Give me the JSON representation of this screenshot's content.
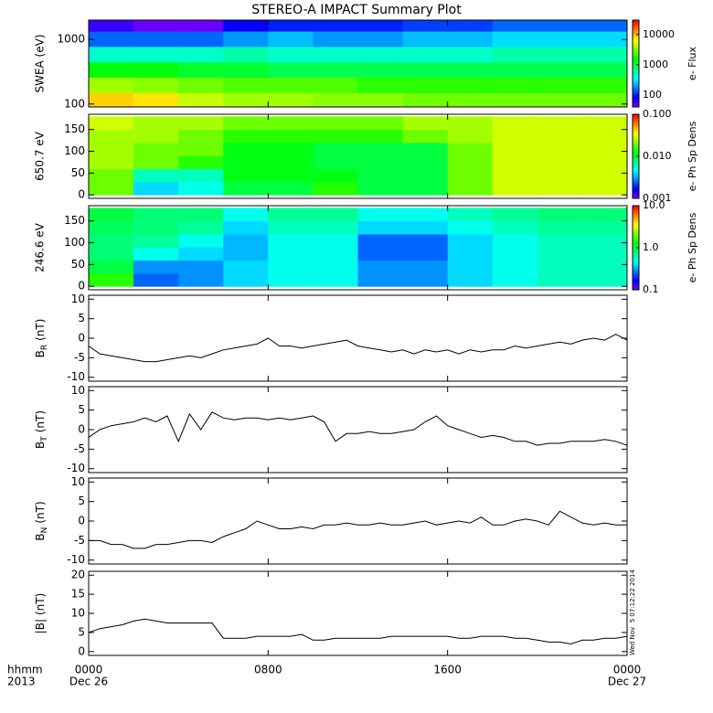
{
  "title": "STEREO-A IMPACT Summary Plot",
  "timestamp": "Wed Nov  5 07:12:22 2014",
  "x_axis": {
    "xlim": [
      0,
      24
    ],
    "xticks": [
      {
        "value": 0,
        "label": "0000"
      },
      {
        "value": 8,
        "label": "0800"
      },
      {
        "value": 16,
        "label": "1600"
      },
      {
        "value": 24,
        "label": "0000"
      }
    ],
    "dates": [
      {
        "value": 0,
        "label": "Dec 26"
      },
      {
        "value": 24,
        "label": "Dec 27"
      }
    ],
    "time_label": "hhmm",
    "year_label": "2013"
  },
  "chart_data": [
    {
      "type": "heatmap",
      "ylabel": "SWEA (eV)",
      "log_y": true,
      "ylim": [
        90,
        2000
      ],
      "yticks": [
        100,
        1000
      ],
      "clabel": "e- Flux",
      "clim": [
        40,
        30000
      ],
      "cticks": [
        100,
        1000,
        10000
      ],
      "x_edges": [
        0,
        2,
        4,
        6,
        8,
        10,
        12,
        14,
        16,
        18,
        20,
        22,
        24
      ],
      "y_edges": [
        90,
        150,
        260,
        450,
        780,
        1350,
        2000
      ],
      "z": [
        [
          9000,
          8000,
          5000,
          4000,
          4000,
          3500,
          3500,
          3000,
          3000,
          3000,
          3000,
          3000
        ],
        [
          4000,
          3500,
          3000,
          2500,
          2500,
          2500,
          2000,
          2000,
          2000,
          2000,
          2000,
          2000
        ],
        [
          1500,
          1500,
          1200,
          1200,
          1000,
          1000,
          1000,
          1000,
          1000,
          1000,
          1000,
          1000
        ],
        [
          500,
          500,
          500,
          600,
          500,
          500,
          500,
          500,
          500,
          600,
          600,
          600
        ],
        [
          150,
          150,
          150,
          200,
          250,
          200,
          200,
          250,
          250,
          300,
          300,
          300
        ],
        [
          60,
          45,
          45,
          80,
          100,
          100,
          100,
          120,
          120,
          150,
          150,
          150
        ]
      ]
    },
    {
      "type": "heatmap",
      "ylabel": "650.7 eV",
      "log_y": false,
      "ylim": [
        -8,
        185
      ],
      "yticks": [
        0,
        50,
        100,
        150
      ],
      "clabel": "e- Ph Sp Dens",
      "clim": [
        0.001,
        0.1
      ],
      "cticks": [
        {
          "value": 0.001,
          "label": "0.001"
        },
        {
          "value": 0.01,
          "label": "0.010"
        },
        {
          "value": 0.1,
          "label": "0.100"
        }
      ],
      "x_edges": [
        0,
        2,
        4,
        6,
        8,
        10,
        12,
        14,
        16,
        18,
        20,
        22,
        24
      ],
      "y_edges": [
        0,
        30,
        60,
        90,
        120,
        150,
        180
      ],
      "z": [
        [
          0.02,
          0.004,
          0.005,
          0.01,
          0.01,
          0.015,
          0.01,
          0.01,
          0.02,
          0.03,
          0.03,
          0.03
        ],
        [
          0.02,
          0.006,
          0.006,
          0.012,
          0.012,
          0.012,
          0.01,
          0.01,
          0.02,
          0.03,
          0.03,
          0.03
        ],
        [
          0.025,
          0.02,
          0.015,
          0.012,
          0.012,
          0.01,
          0.01,
          0.01,
          0.02,
          0.03,
          0.03,
          0.03
        ],
        [
          0.025,
          0.02,
          0.02,
          0.012,
          0.012,
          0.01,
          0.01,
          0.01,
          0.02,
          0.03,
          0.03,
          0.03
        ],
        [
          0.025,
          0.025,
          0.02,
          0.015,
          0.015,
          0.015,
          0.015,
          0.02,
          0.025,
          0.03,
          0.03,
          0.03
        ],
        [
          0.03,
          0.025,
          0.025,
          0.02,
          0.02,
          0.02,
          0.02,
          0.025,
          0.025,
          0.03,
          0.03,
          0.03
        ]
      ]
    },
    {
      "type": "heatmap",
      "ylabel": "246.6 eV",
      "log_y": false,
      "ylim": [
        -8,
        185
      ],
      "yticks": [
        0,
        50,
        100,
        150
      ],
      "clabel": "e- Ph Sp Dens",
      "clim": [
        0.1,
        10
      ],
      "cticks": [
        0.1,
        {
          "value": 1,
          "label": "1.0"
        },
        {
          "value": 10,
          "label": "10.0"
        }
      ],
      "x_edges": [
        0,
        2,
        4,
        6,
        8,
        10,
        12,
        14,
        16,
        18,
        20,
        22,
        24
      ],
      "y_edges": [
        0,
        30,
        60,
        90,
        120,
        150,
        180
      ],
      "z": [
        [
          1.5,
          0.25,
          0.3,
          0.4,
          0.5,
          0.5,
          0.3,
          0.3,
          0.4,
          0.5,
          0.6,
          0.6
        ],
        [
          1,
          0.3,
          0.3,
          0.4,
          0.5,
          0.5,
          0.3,
          0.3,
          0.4,
          0.5,
          0.6,
          0.6
        ],
        [
          0.8,
          0.5,
          0.4,
          0.35,
          0.5,
          0.5,
          0.25,
          0.25,
          0.4,
          0.5,
          0.6,
          0.6
        ],
        [
          0.8,
          0.7,
          0.5,
          0.35,
          0.5,
          0.5,
          0.25,
          0.25,
          0.4,
          0.5,
          0.6,
          0.6
        ],
        [
          0.9,
          0.8,
          0.7,
          0.4,
          0.6,
          0.6,
          0.4,
          0.4,
          0.5,
          0.6,
          0.7,
          0.7
        ],
        [
          1,
          0.8,
          0.8,
          0.5,
          0.7,
          0.7,
          0.5,
          0.5,
          0.6,
          0.7,
          0.8,
          0.8
        ]
      ]
    },
    {
      "type": "line",
      "ylabel": {
        "symbol": "B",
        "sub": "R",
        "unit": "(nT)"
      },
      "ylim": [
        -11,
        11
      ],
      "yticks": [
        -10,
        -5,
        0,
        5,
        10
      ],
      "color": "#000000",
      "x": [
        0,
        0.5,
        1,
        1.5,
        2,
        2.5,
        3,
        3.5,
        4,
        4.5,
        5,
        5.5,
        6,
        6.5,
        7,
        7.5,
        8,
        8.5,
        9,
        9.5,
        10,
        10.5,
        11,
        11.5,
        12,
        12.5,
        13,
        13.5,
        14,
        14.5,
        15,
        15.5,
        16,
        16.5,
        17,
        17.5,
        18,
        18.5,
        19,
        19.5,
        20,
        20.5,
        21,
        21.5,
        22,
        22.5,
        23,
        23.5,
        24
      ],
      "values": [
        -2,
        -4,
        -4.5,
        -5,
        -5.5,
        -6,
        -6,
        -5.5,
        -5,
        -4.5,
        -5,
        -4,
        -3,
        -2.5,
        -2,
        -1.5,
        0,
        -2,
        -2,
        -2.5,
        -2,
        -1.5,
        -1,
        -0.5,
        -2,
        -2.5,
        -3,
        -3.5,
        -3,
        -4,
        -3,
        -3.5,
        -3,
        -4,
        -3,
        -3.5,
        -3,
        -3,
        -2,
        -2.5,
        -2,
        -1.5,
        -1,
        -1.5,
        -0.5,
        0,
        -0.5,
        1,
        -0.5
      ]
    },
    {
      "type": "line",
      "ylabel": {
        "symbol": "B",
        "sub": "T",
        "unit": "(nT)"
      },
      "ylim": [
        -11,
        11
      ],
      "yticks": [
        -10,
        -5,
        0,
        5,
        10
      ],
      "color": "#000000",
      "x": [
        0,
        0.5,
        1,
        1.5,
        2,
        2.5,
        3,
        3.5,
        4,
        4.5,
        5,
        5.5,
        6,
        6.5,
        7,
        7.5,
        8,
        8.5,
        9,
        9.5,
        10,
        10.5,
        11,
        11.5,
        12,
        12.5,
        13,
        13.5,
        14,
        14.5,
        15,
        15.5,
        16,
        16.5,
        17,
        17.5,
        18,
        18.5,
        19,
        19.5,
        20,
        20.5,
        21,
        21.5,
        22,
        22.5,
        23,
        23.5,
        24
      ],
      "values": [
        -2,
        0,
        1,
        1.5,
        2,
        3,
        2,
        3.5,
        -3,
        4,
        0,
        4.5,
        3,
        2.5,
        3,
        3,
        2.5,
        3,
        2.5,
        3,
        3.5,
        2,
        -3,
        -1,
        -1,
        -0.5,
        -1,
        -1,
        -0.5,
        0,
        2,
        3.5,
        1,
        0,
        -1,
        -2,
        -1.5,
        -2,
        -3,
        -3,
        -4,
        -3.5,
        -3.5,
        -3,
        -3,
        -3,
        -2.5,
        -3,
        -4
      ]
    },
    {
      "type": "line",
      "ylabel": {
        "symbol": "B",
        "sub": "N",
        "unit": "(nT)"
      },
      "ylim": [
        -11,
        11
      ],
      "yticks": [
        -10,
        -5,
        0,
        5,
        10
      ],
      "color": "#000000",
      "x": [
        0,
        0.5,
        1,
        1.5,
        2,
        2.5,
        3,
        3.5,
        4,
        4.5,
        5,
        5.5,
        6,
        6.5,
        7,
        7.5,
        8,
        8.5,
        9,
        9.5,
        10,
        10.5,
        11,
        11.5,
        12,
        12.5,
        13,
        13.5,
        14,
        14.5,
        15,
        15.5,
        16,
        16.5,
        17,
        17.5,
        18,
        18.5,
        19,
        19.5,
        20,
        20.5,
        21,
        21.5,
        22,
        22.5,
        23,
        23.5,
        24
      ],
      "values": [
        -5,
        -5,
        -6,
        -6,
        -7,
        -7,
        -6,
        -6,
        -5.5,
        -5,
        -5,
        -5.5,
        -4,
        -3,
        -2,
        0,
        -1,
        -2,
        -2,
        -1.5,
        -2,
        -1,
        -1,
        -0.5,
        -1,
        -1,
        -0.5,
        -1,
        -1,
        -0.5,
        0,
        -1,
        -0.5,
        0,
        -0.5,
        1,
        -1,
        -1,
        0,
        0.5,
        0,
        -1,
        2.5,
        1,
        -0.5,
        -1,
        -0.5,
        -1,
        -1
      ]
    },
    {
      "type": "line",
      "ylabel": {
        "symbol": "|B|",
        "sub": "",
        "unit": "(nT)"
      },
      "ylim": [
        -1,
        21
      ],
      "yticks": [
        0,
        5,
        10,
        15,
        20
      ],
      "color": "#000000",
      "x": [
        0,
        0.5,
        1,
        1.5,
        2,
        2.5,
        3,
        3.5,
        4,
        4.5,
        5,
        5.5,
        6,
        6.5,
        7,
        7.5,
        8,
        8.5,
        9,
        9.5,
        10,
        10.5,
        11,
        11.5,
        12,
        12.5,
        13,
        13.5,
        14,
        14.5,
        15,
        15.5,
        16,
        16.5,
        17,
        17.5,
        18,
        18.5,
        19,
        19.5,
        20,
        20.5,
        21,
        21.5,
        22,
        22.5,
        23,
        23.5,
        24
      ],
      "values": [
        5,
        6,
        6.5,
        7,
        8,
        8.5,
        8,
        7.5,
        7.5,
        7.5,
        7.5,
        7.5,
        3.5,
        3.5,
        3.5,
        4,
        4,
        4,
        4,
        4.5,
        3,
        3,
        3.5,
        3.5,
        3.5,
        3.5,
        3.5,
        4,
        4,
        4,
        4,
        4,
        4,
        3.5,
        3.5,
        4,
        4,
        4,
        3.5,
        3.5,
        3,
        2.5,
        2.5,
        2,
        3,
        3,
        3.5,
        3.5,
        4
      ]
    }
  ]
}
